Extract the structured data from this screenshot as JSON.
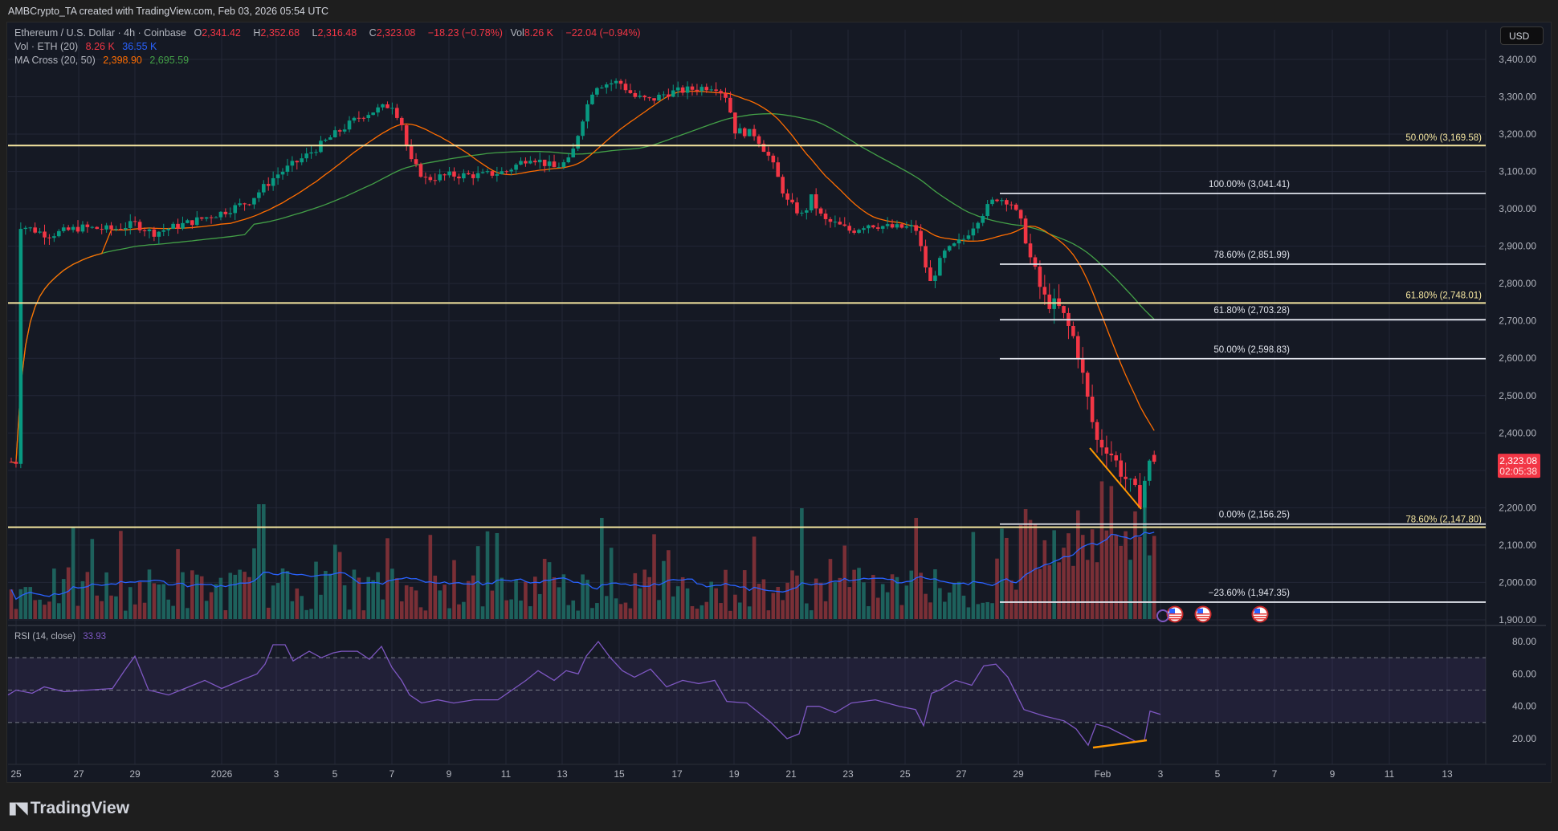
{
  "caption": "AMBCrypto_TA created with TradingView.com, Feb 03, 2026 05:54 UTC",
  "legend": {
    "symbol": "Ethereum / U.S. Dollar · 4h · Coinbase",
    "o_label": "O",
    "o": "2,341.42",
    "h_label": "H",
    "h": "2,352.68",
    "l_label": "L",
    "l": "2,316.48",
    "c_label": "C",
    "c": "2,323.08",
    "change": "−18.23 (−0.78%)",
    "vol_label": "Vol",
    "vol": "8.26 K",
    "vol_change": "−22.04 (−0.94%)",
    "volume_indicator": "Vol · ETH (20)",
    "volume_value": "8.26 K",
    "volume_ma": "36.55 K",
    "ma_indicator": "MA Cross (20, 50)",
    "ma20": "2,398.90",
    "ma50": "2,695.59",
    "rsi_indicator": "RSI (14, close)",
    "rsi_value": "33.93"
  },
  "currency_button": "USD",
  "price_axis": [
    "3,400.00",
    "3,300.00",
    "3,200.00",
    "3,100.00",
    "3,000.00",
    "2,900.00",
    "2,800.00",
    "2,700.00",
    "2,600.00",
    "2,500.00",
    "2,400.00",
    "2,200.00",
    "2,100.00",
    "2,000.00",
    "1,900.00"
  ],
  "last_price": {
    "price": "2,323.08",
    "countdown": "02:05:38"
  },
  "rsi_axis": [
    "80.00",
    "60.00",
    "40.00",
    "20.00"
  ],
  "time_axis": [
    "25",
    "27",
    "29",
    "2026",
    "3",
    "5",
    "7",
    "9",
    "11",
    "13",
    "15",
    "17",
    "19",
    "21",
    "23",
    "25",
    "27",
    "29",
    "Feb",
    "3",
    "5",
    "7",
    "9",
    "11",
    "13"
  ],
  "brand": "TradingView",
  "colors": {
    "up": "#089981",
    "down": "#f23645",
    "ma20": "#ff6d00",
    "ma50": "#43a047",
    "vol_ma": "#2962ff",
    "rsi": "#7e57c2",
    "fib_yellow": "#f5e6a0",
    "fib_white": "#e0e3eb"
  },
  "chart_data": {
    "type": "candlestick",
    "title": "Ethereum / U.S. Dollar · 4h · Coinbase",
    "ylim": [
      1900,
      3400
    ],
    "x_range": [
      "Dec 25, 2025",
      "Feb 14, 2026"
    ],
    "fib_levels_yellow": [
      {
        "label": "50.00% (3,169.58)",
        "value": 3169.58
      },
      {
        "label": "61.80% (2,748.01)",
        "value": 2748.01
      },
      {
        "label": "78.60% (2,147.80)",
        "value": 2147.8
      }
    ],
    "fib_levels_white": [
      {
        "label": "100.00% (3,041.41)",
        "value": 3041.41
      },
      {
        "label": "78.60% (2,851.99)",
        "value": 2851.99
      },
      {
        "label": "61.80% (2,703.28)",
        "value": 2703.28
      },
      {
        "label": "50.00% (2,598.83)",
        "value": 2598.83
      },
      {
        "label": "0.00% (2,156.25)",
        "value": 2156.25
      },
      {
        "label": "−23.60% (1,947.35)",
        "value": 1947.35
      }
    ],
    "approx_close_path": [
      {
        "date": "Dec 25",
        "close": 2960
      },
      {
        "date": "Dec 29",
        "close": 2940
      },
      {
        "date": "Jan 1",
        "close": 2980
      },
      {
        "date": "Jan 3",
        "close": 3090
      },
      {
        "date": "Jan 6",
        "close": 3280
      },
      {
        "date": "Jan 8",
        "close": 3100
      },
      {
        "date": "Jan 11",
        "close": 3090
      },
      {
        "date": "Jan 13",
        "close": 3140
      },
      {
        "date": "Jan 14",
        "close": 3360
      },
      {
        "date": "Jan 17",
        "close": 3320
      },
      {
        "date": "Jan 19",
        "close": 3220
      },
      {
        "date": "Jan 20",
        "close": 3050
      },
      {
        "date": "Jan 22",
        "close": 2950
      },
      {
        "date": "Jan 25",
        "close": 2800
      },
      {
        "date": "Jan 28",
        "close": 3030
      },
      {
        "date": "Jan 30",
        "close": 2740
      },
      {
        "date": "Jan 31",
        "close": 2400
      },
      {
        "date": "Feb 2",
        "close": 2200
      },
      {
        "date": "Feb 3",
        "close": 2323.08
      }
    ],
    "ma_cross": {
      "fast": 20,
      "slow": 50,
      "fast_last": 2398.9,
      "slow_last": 2695.59
    },
    "volume": {
      "ma_period": 20,
      "last": "8.26K",
      "ma_last": "36.55K"
    },
    "rsi": {
      "period": 14,
      "last": 33.93,
      "ylim": [
        10,
        90
      ],
      "bands": [
        70,
        50,
        30
      ]
    },
    "annotations": [
      "Orange falling trendline on price (Jan 31–Feb 2)",
      "Orange rising trendline on RSI lows (bullish divergence)"
    ]
  }
}
